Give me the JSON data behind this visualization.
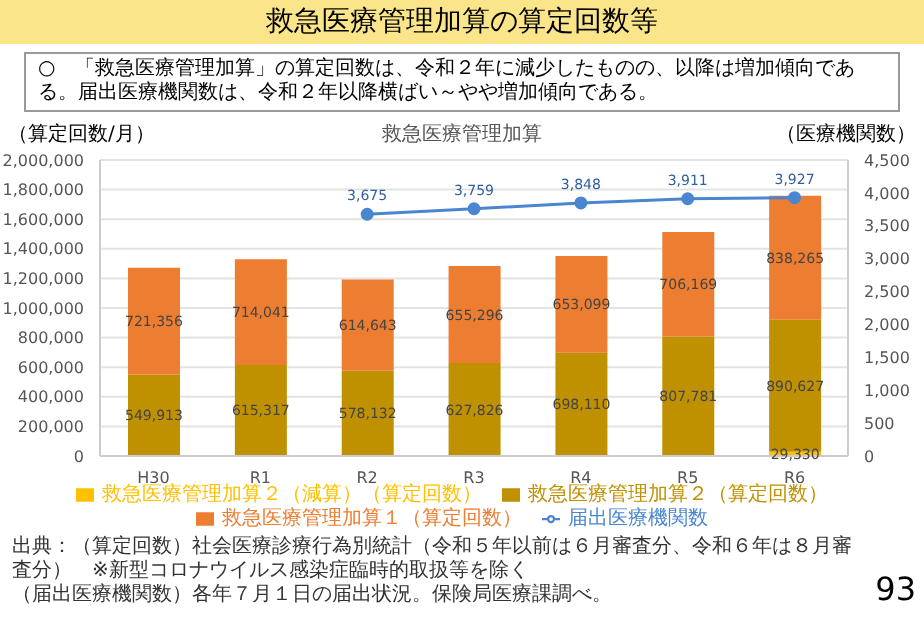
{
  "chart_data": {
    "type": "bar",
    "title": "救急医療管理加算の算定回数等",
    "subtitle": "救急医療管理加算",
    "ylabel": "（算定回数/月）",
    "y2label": "（医療機関数）",
    "annotations": [
      "○　「救急医療管理加算」の算定回数は、令和２年に減少したものの、以降は増加傾向である。届出医療機関数は、令和２年以降横ばい～やや増加傾向である。",
      "出典：（算定回数）社会医療診療行為別統計（令和５年以前は６月審査分、令和６年は８月審査分）　※新型コロナウイルス感染症臨時的取扱等を除く",
      "（届出医療機関数）各年７月１日の届出状況。保険局医療課調べ。",
      "93"
    ],
    "categories": [
      "H30",
      "R1",
      "R2",
      "R3",
      "R4",
      "R5",
      "R6"
    ],
    "stacked": true,
    "grid": "y",
    "legend": "bottom",
    "series": [
      {
        "name": "救急医療管理加算２（減算）（算定回数）",
        "color": "#ffc000",
        "values": [
          null,
          null,
          null,
          null,
          null,
          null,
          29330
        ],
        "value_labels": [
          null,
          null,
          null,
          null,
          null,
          null,
          "29,330"
        ]
      },
      {
        "name": "救急医療管理加算２（算定回数）",
        "color": "#bf9000",
        "values": [
          549913,
          615317,
          578132,
          627826,
          698110,
          807781,
          890627
        ],
        "value_labels": [
          "549,913",
          "615,317",
          "578,132",
          "627,826",
          "698,110",
          "807,781",
          "890,627"
        ]
      },
      {
        "name": "救急医療管理加算１（算定回数）",
        "color": "#ed7d31",
        "values": [
          721356,
          714041,
          614643,
          655296,
          653099,
          706169,
          838265
        ],
        "value_labels": [
          "721,356",
          "714,041",
          "614,643",
          "655,296",
          "653,099",
          "706,169",
          "838,265"
        ]
      },
      {
        "name": "届出医療機関数",
        "type": "line",
        "axis": "y2",
        "marker": "circle",
        "color": "#4a86d0",
        "values": [
          null,
          null,
          3675,
          3759,
          3848,
          3911,
          3927
        ],
        "value_labels": [
          null,
          null,
          "3,675",
          "3,759",
          "3,848",
          "3,911",
          "3,927"
        ]
      }
    ],
    "ylim": [
      0,
      2000000
    ],
    "yticks": [
      0,
      {
        "value": 200000,
        "label": "200,000"
      },
      {
        "value": 400000,
        "label": "400,000"
      },
      {
        "value": 600000,
        "label": "600,000"
      },
      {
        "value": 800000,
        "label": "800,000"
      },
      {
        "value": 1000000,
        "label": "1,000,000"
      },
      {
        "value": 1200000,
        "label": "1,200,000"
      },
      {
        "value": 1400000,
        "label": "1,400,000"
      },
      {
        "value": 1600000,
        "label": "1,600,000"
      },
      {
        "value": 1800000,
        "label": "1,800,000"
      },
      {
        "value": 2000000,
        "label": "2,000,000"
      }
    ],
    "y2lim": [
      0,
      4500
    ],
    "y2ticks": [
      0,
      500,
      {
        "value": 1000,
        "label": "1,000"
      },
      {
        "value": 1500,
        "label": "1,500"
      },
      {
        "value": 2000,
        "label": "2,000"
      },
      {
        "value": 2500,
        "label": "2,500"
      },
      {
        "value": 3000,
        "label": "3,000"
      },
      {
        "value": 3500,
        "label": "3,500"
      },
      {
        "value": 4000,
        "label": "4,000"
      },
      {
        "value": 4500,
        "label": "4,500"
      }
    ]
  }
}
